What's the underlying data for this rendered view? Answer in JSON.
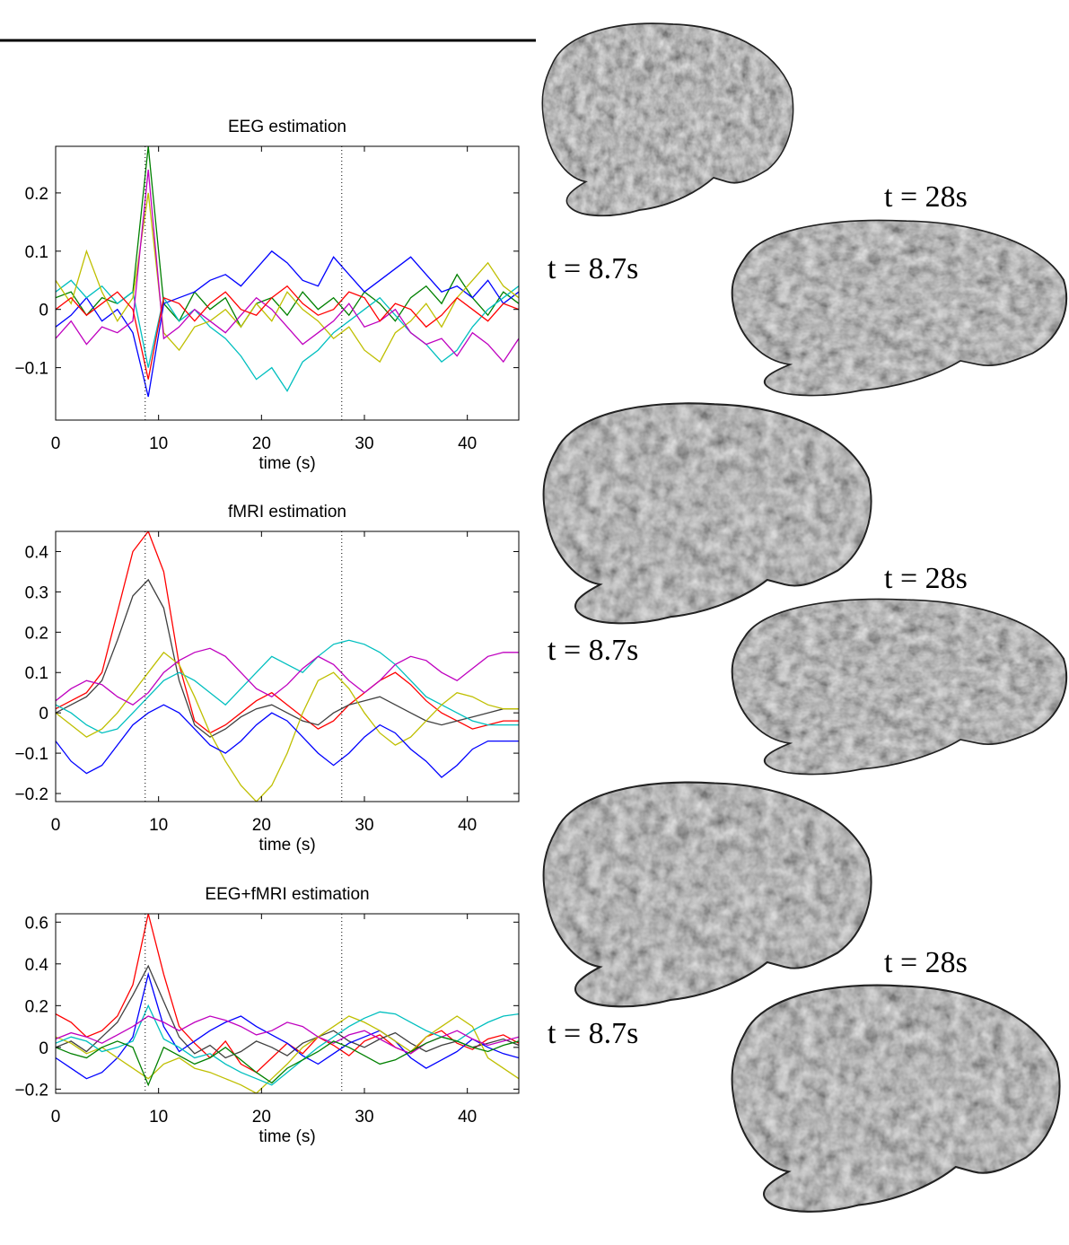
{
  "chart_data": [
    {
      "type": "line",
      "title": "EEG estimation",
      "xlabel": "time (s)",
      "x": [
        0,
        1.5,
        3,
        4.5,
        6,
        7.5,
        9,
        10.5,
        12,
        13.5,
        15,
        16.5,
        18,
        19.5,
        21,
        22.5,
        24,
        25.5,
        27,
        28.5,
        30,
        31.5,
        33,
        34.5,
        36,
        37.5,
        39,
        40.5,
        42,
        43.5,
        45
      ],
      "xlim": [
        0,
        45
      ],
      "xticks": [
        0,
        10,
        20,
        30,
        40
      ],
      "ylim": [
        -0.19,
        0.28
      ],
      "yticks": [
        {
          "value": -0.1,
          "label": "−0.1"
        },
        0,
        0.1,
        0.2
      ],
      "vlines": [
        8.7,
        27.8
      ],
      "series": [
        {
          "color": "#008000",
          "values": [
            0.02,
            0.03,
            -0.01,
            0.02,
            0.01,
            0.03,
            0.28,
            0.01,
            -0.02,
            0.03,
            0.0,
            0.02,
            -0.03,
            0.01,
            0.02,
            -0.01,
            0.03,
            0.0,
            0.02,
            -0.01,
            0.03,
            0.01,
            -0.02,
            0.02,
            0.04,
            0.01,
            0.06,
            0.02,
            -0.01,
            0.03,
            0.01
          ]
        },
        {
          "color": "#0000ff",
          "values": [
            -0.03,
            -0.01,
            0.02,
            -0.02,
            0.0,
            -0.04,
            -0.15,
            0.01,
            0.02,
            0.03,
            0.05,
            0.06,
            0.04,
            0.07,
            0.1,
            0.08,
            0.05,
            0.04,
            0.09,
            0.06,
            0.03,
            0.05,
            0.07,
            0.09,
            0.06,
            0.03,
            0.04,
            0.02,
            0.05,
            0.01,
            0.03
          ]
        },
        {
          "color": "#00bfbf",
          "values": [
            0.03,
            0.05,
            0.02,
            0.04,
            0.01,
            0.03,
            -0.1,
            0.02,
            -0.02,
            0.0,
            -0.03,
            -0.05,
            -0.08,
            -0.12,
            -0.1,
            -0.14,
            -0.09,
            -0.07,
            -0.04,
            -0.02,
            0.0,
            0.02,
            -0.01,
            -0.04,
            -0.06,
            -0.09,
            -0.07,
            -0.03,
            0.0,
            0.02,
            0.04
          ]
        },
        {
          "color": "#bfbf00",
          "values": [
            0.05,
            0.01,
            0.1,
            0.03,
            -0.02,
            0.02,
            0.2,
            -0.04,
            -0.07,
            -0.03,
            -0.02,
            0.0,
            -0.03,
            0.01,
            -0.02,
            0.03,
            0.0,
            -0.02,
            -0.05,
            -0.03,
            -0.07,
            -0.09,
            -0.04,
            -0.02,
            0.01,
            -0.03,
            0.02,
            0.05,
            0.08,
            0.04,
            0.02
          ]
        },
        {
          "color": "#bf00bf",
          "values": [
            -0.05,
            -0.02,
            -0.06,
            -0.03,
            -0.04,
            -0.02,
            0.24,
            -0.05,
            -0.03,
            0.0,
            -0.02,
            -0.04,
            -0.01,
            0.02,
            0.0,
            -0.03,
            -0.06,
            -0.04,
            -0.02,
            0.01,
            -0.03,
            -0.02,
            0.0,
            -0.04,
            -0.06,
            -0.05,
            -0.08,
            -0.04,
            -0.06,
            -0.09,
            -0.05
          ]
        },
        {
          "color": "#ff0000",
          "values": [
            0.0,
            0.02,
            -0.01,
            0.01,
            0.03,
            0.0,
            -0.12,
            0.02,
            0.01,
            -0.02,
            0.01,
            0.03,
            0.0,
            -0.01,
            0.02,
            0.04,
            0.01,
            -0.01,
            0.0,
            0.03,
            0.02,
            -0.02,
            0.01,
            0.0,
            -0.03,
            -0.01,
            0.02,
            0.0,
            -0.02,
            0.01,
            0.0
          ]
        }
      ]
    },
    {
      "type": "line",
      "title": "fMRI estimation",
      "xlabel": "time (s)",
      "x": [
        0,
        1.5,
        3,
        4.5,
        6,
        7.5,
        9,
        10.5,
        12,
        13.5,
        15,
        16.5,
        18,
        19.5,
        21,
        22.5,
        24,
        25.5,
        27,
        28.5,
        30,
        31.5,
        33,
        34.5,
        36,
        37.5,
        39,
        40.5,
        42,
        43.5,
        45
      ],
      "xlim": [
        0,
        45
      ],
      "xticks": [
        0,
        10,
        20,
        30,
        40
      ],
      "ylim": [
        -0.22,
        0.45
      ],
      "yticks": [
        {
          "value": -0.2,
          "label": "−0.2"
        },
        {
          "value": -0.1,
          "label": "−0.1"
        },
        0,
        0.1,
        0.2,
        0.3,
        0.4
      ],
      "vlines": [
        8.7,
        27.8
      ],
      "series": [
        {
          "color": "#ff0000",
          "values": [
            0.01,
            0.03,
            0.05,
            0.1,
            0.25,
            0.4,
            0.45,
            0.35,
            0.12,
            -0.02,
            -0.05,
            -0.03,
            0.0,
            0.03,
            0.05,
            0.02,
            -0.01,
            -0.04,
            -0.02,
            0.02,
            0.05,
            0.08,
            0.1,
            0.07,
            0.03,
            0.0,
            -0.02,
            -0.04,
            -0.03,
            -0.02,
            -0.02
          ]
        },
        {
          "color": "#404040",
          "values": [
            0.0,
            0.02,
            0.04,
            0.08,
            0.18,
            0.29,
            0.33,
            0.26,
            0.08,
            -0.03,
            -0.06,
            -0.04,
            -0.01,
            0.01,
            0.02,
            0.0,
            -0.02,
            -0.03,
            0.0,
            0.02,
            0.03,
            0.04,
            0.02,
            0.0,
            -0.02,
            -0.03,
            -0.02,
            -0.01,
            0.0,
            0.01,
            0.01
          ]
        },
        {
          "color": "#00bfbf",
          "values": [
            0.02,
            0.0,
            -0.03,
            -0.05,
            -0.04,
            0.0,
            0.04,
            0.08,
            0.1,
            0.08,
            0.05,
            0.02,
            0.06,
            0.1,
            0.14,
            0.12,
            0.1,
            0.14,
            0.17,
            0.18,
            0.17,
            0.15,
            0.12,
            0.08,
            0.04,
            0.02,
            0.0,
            -0.02,
            -0.03,
            -0.03,
            -0.03
          ]
        },
        {
          "color": "#bfbf00",
          "values": [
            0.0,
            -0.03,
            -0.06,
            -0.04,
            0.0,
            0.05,
            0.1,
            0.15,
            0.12,
            0.04,
            -0.05,
            -0.12,
            -0.18,
            -0.22,
            -0.18,
            -0.1,
            0.0,
            0.08,
            0.1,
            0.06,
            0.0,
            -0.05,
            -0.08,
            -0.06,
            -0.02,
            0.02,
            0.05,
            0.04,
            0.02,
            0.01,
            0.01
          ]
        },
        {
          "color": "#0000ff",
          "values": [
            -0.07,
            -0.12,
            -0.15,
            -0.13,
            -0.08,
            -0.03,
            0.0,
            0.02,
            0.0,
            -0.04,
            -0.08,
            -0.1,
            -0.07,
            -0.03,
            0.0,
            -0.02,
            -0.06,
            -0.1,
            -0.13,
            -0.1,
            -0.06,
            -0.03,
            -0.05,
            -0.09,
            -0.12,
            -0.16,
            -0.13,
            -0.09,
            -0.07,
            -0.07,
            -0.07
          ]
        },
        {
          "color": "#bf00bf",
          "values": [
            0.03,
            0.06,
            0.08,
            0.07,
            0.04,
            0.02,
            0.05,
            0.1,
            0.13,
            0.15,
            0.16,
            0.14,
            0.1,
            0.06,
            0.04,
            0.07,
            0.11,
            0.14,
            0.12,
            0.08,
            0.05,
            0.08,
            0.12,
            0.14,
            0.13,
            0.1,
            0.08,
            0.11,
            0.14,
            0.15,
            0.15
          ]
        }
      ]
    },
    {
      "type": "line",
      "title": "EEG+fMRI estimation",
      "xlabel": "time (s)",
      "x": [
        0,
        1.5,
        3,
        4.5,
        6,
        7.5,
        9,
        10.5,
        12,
        13.5,
        15,
        16.5,
        18,
        19.5,
        21,
        22.5,
        24,
        25.5,
        27,
        28.5,
        30,
        31.5,
        33,
        34.5,
        36,
        37.5,
        39,
        40.5,
        42,
        43.5,
        45
      ],
      "xlim": [
        0,
        45
      ],
      "xticks": [
        0,
        10,
        20,
        30,
        40
      ],
      "ylim": [
        -0.22,
        0.64
      ],
      "yticks": [
        {
          "value": -0.2,
          "label": "−0.2"
        },
        0,
        0.2,
        0.4,
        0.6
      ],
      "vlines": [
        8.7,
        27.8
      ],
      "series": [
        {
          "color": "#ff0000",
          "values": [
            0.16,
            0.12,
            0.05,
            0.08,
            0.15,
            0.3,
            0.64,
            0.35,
            0.1,
            0.02,
            -0.05,
            0.03,
            -0.08,
            -0.12,
            -0.05,
            0.02,
            -0.03,
            0.05,
            0.01,
            -0.04,
            0.03,
            0.06,
            0.0,
            -0.03,
            0.05,
            0.08,
            0.02,
            -0.01,
            0.04,
            0.06,
            0.02
          ]
        },
        {
          "color": "#404040",
          "values": [
            0.0,
            0.03,
            -0.02,
            0.05,
            0.12,
            0.25,
            0.39,
            0.22,
            0.05,
            -0.03,
            0.01,
            -0.05,
            -0.02,
            0.03,
            0.0,
            -0.04,
            0.02,
            0.05,
            0.08,
            0.03,
            0.0,
            0.04,
            0.07,
            0.02,
            -0.02,
            0.01,
            0.03,
            0.0,
            0.02,
            0.04,
            0.01
          ]
        },
        {
          "color": "#0000ff",
          "values": [
            -0.05,
            -0.1,
            -0.15,
            -0.12,
            -0.05,
            0.05,
            0.35,
            0.1,
            -0.02,
            0.03,
            0.08,
            0.12,
            0.15,
            0.1,
            0.06,
            0.02,
            -0.04,
            -0.08,
            -0.03,
            0.02,
            0.05,
            0.08,
            0.03,
            -0.05,
            -0.1,
            -0.06,
            -0.02,
            0.04,
            0.0,
            -0.03,
            -0.05
          ]
        },
        {
          "color": "#bfbf00",
          "values": [
            0.05,
            0.02,
            -0.03,
            0.0,
            -0.05,
            -0.1,
            -0.15,
            -0.08,
            -0.05,
            -0.1,
            -0.12,
            -0.15,
            -0.18,
            -0.22,
            -0.15,
            -0.08,
            0.0,
            0.05,
            0.1,
            0.15,
            0.12,
            0.08,
            0.03,
            -0.02,
            0.05,
            0.1,
            0.15,
            0.1,
            -0.05,
            -0.1,
            -0.15
          ]
        },
        {
          "color": "#00bfbf",
          "values": [
            0.02,
            0.05,
            0.03,
            -0.02,
            0.0,
            0.03,
            0.2,
            0.04,
            0.0,
            -0.05,
            -0.03,
            -0.08,
            -0.12,
            -0.15,
            -0.18,
            -0.12,
            -0.06,
            0.0,
            0.05,
            0.1,
            0.14,
            0.17,
            0.16,
            0.12,
            0.08,
            0.05,
            0.03,
            0.08,
            0.12,
            0.15,
            0.16
          ]
        },
        {
          "color": "#bf00bf",
          "values": [
            0.04,
            0.07,
            0.05,
            0.02,
            0.06,
            0.1,
            0.15,
            0.12,
            0.08,
            0.12,
            0.15,
            0.13,
            0.1,
            0.06,
            0.08,
            0.12,
            0.1,
            0.05,
            0.02,
            0.06,
            0.08,
            0.04,
            0.0,
            -0.03,
            0.02,
            0.05,
            0.08,
            0.04,
            0.01,
            0.03,
            0.05
          ]
        },
        {
          "color": "#008000",
          "values": [
            0.0,
            -0.03,
            -0.05,
            0.0,
            0.03,
            0.0,
            -0.18,
            0.0,
            -0.04,
            -0.08,
            -0.05,
            0.0,
            -0.06,
            -0.12,
            -0.17,
            -0.1,
            -0.06,
            -0.02,
            0.03,
            0.0,
            -0.04,
            -0.08,
            -0.06,
            -0.02,
            0.02,
            0.05,
            0.03,
            0.0,
            -0.02,
            0.01,
            0.03
          ]
        }
      ]
    }
  ],
  "brain_labels": [
    {
      "late": "t = 28s",
      "early": "t = 8.7s"
    },
    {
      "late": "t = 28s",
      "early": "t = 8.7s"
    },
    {
      "late": "t = 28s",
      "early": "t = 8.7s"
    }
  ]
}
